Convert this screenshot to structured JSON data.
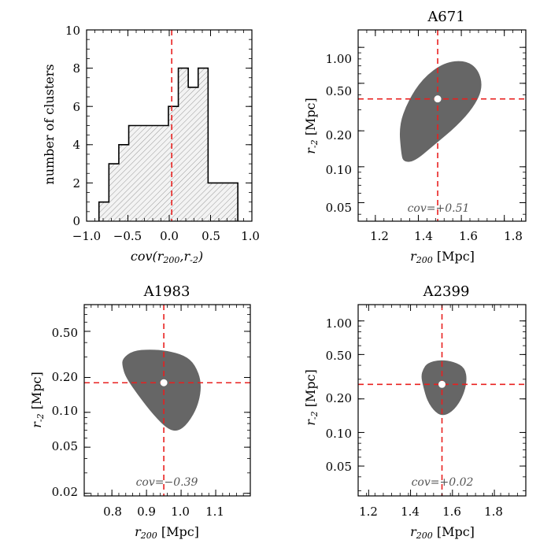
{
  "colors": {
    "ellipse": "#666666",
    "guide": "#e8201f",
    "frame": "#000000",
    "hatch_fill": "#f3f3f3",
    "hatch_line": "#9a9a9a"
  },
  "chart_data": [
    {
      "id": "hist",
      "type": "bar",
      "title": "",
      "xlabel": "cov(r200, r-2)",
      "xlabel_main": "cov(r",
      "xlabel_sub1": "200",
      "xlabel_mid": ",r",
      "xlabel_sub2": "-2",
      "xlabel_end": ")",
      "ylabel": "number of clusters",
      "xlim": [
        -1.0,
        1.0
      ],
      "ylim": [
        0,
        10
      ],
      "xticks": [
        -1.0,
        -0.5,
        0.0,
        0.5,
        1.0
      ],
      "xtick_labels": [
        "−1.0",
        "−0.5",
        "0.0",
        "0.5",
        "1.0"
      ],
      "yticks": [
        0,
        2,
        4,
        6,
        8,
        10
      ],
      "ytick_labels": [
        "0",
        "2",
        "4",
        "6",
        "8",
        "10"
      ],
      "bin_edges": [
        -0.85,
        -0.73,
        -0.61,
        -0.49,
        -0.37,
        -0.25,
        -0.13,
        -0.01,
        0.11,
        0.23,
        0.35,
        0.47,
        0.59,
        0.71,
        0.83
      ],
      "counts": [
        1,
        3,
        4,
        5,
        5,
        5,
        5,
        6,
        8,
        7,
        8,
        2,
        2,
        2
      ],
      "vline": 0.03
    },
    {
      "id": "a671",
      "type": "scatter",
      "title": "A671",
      "xlabel": "r200 [Mpc]",
      "xlabel_sym": "r",
      "xlabel_sub": "200",
      "xlabel_unit": " [Mpc]",
      "ylabel_sym": "r",
      "ylabel_sub": "-2",
      "ylabel_unit": " [Mpc]",
      "yscale": "log",
      "xlim": [
        1.12,
        1.9
      ],
      "ylim": [
        0.035,
        1.4
      ],
      "xticks": [
        1.2,
        1.4,
        1.6,
        1.8
      ],
      "xtick_labels": [
        "1.2",
        "1.4",
        "1.6",
        "1.8"
      ],
      "yticks": [
        0.05,
        0.1,
        0.2,
        0.5,
        1.0
      ],
      "ytick_labels": [
        "0.05",
        "0.10",
        "0.20",
        "0.50",
        "1.00"
      ],
      "point": {
        "x": 1.49,
        "y": 0.37
      },
      "cov_label": "cov=+0.51",
      "region": [
        [
          1.32,
          0.13
        ],
        [
          1.31,
          0.22
        ],
        [
          1.35,
          0.35
        ],
        [
          1.42,
          0.55
        ],
        [
          1.52,
          0.75
        ],
        [
          1.62,
          0.78
        ],
        [
          1.68,
          0.65
        ],
        [
          1.7,
          0.46
        ],
        [
          1.66,
          0.32
        ],
        [
          1.58,
          0.22
        ],
        [
          1.47,
          0.15
        ],
        [
          1.38,
          0.11
        ],
        [
          1.33,
          0.11
        ]
      ]
    },
    {
      "id": "a1983",
      "type": "scatter",
      "title": "A1983",
      "xlabel": "r200 [Mpc]",
      "xlabel_sym": "r",
      "xlabel_sub": "200",
      "xlabel_unit": " [Mpc]",
      "ylabel_sym": "r",
      "ylabel_sub": "-2",
      "ylabel_unit": " [Mpc]",
      "yscale": "log",
      "xlim": [
        0.72,
        1.2
      ],
      "ylim": [
        0.019,
        0.85
      ],
      "xticks": [
        0.8,
        0.9,
        1.0,
        1.1
      ],
      "xtick_labels": [
        "0.8",
        "0.9",
        "1.0",
        "1.1"
      ],
      "yticks": [
        0.02,
        0.05,
        0.1,
        0.2,
        0.5
      ],
      "ytick_labels": [
        "0.02",
        "0.05",
        "0.10",
        "0.20",
        "0.50"
      ],
      "point": {
        "x": 0.95,
        "y": 0.18
      },
      "cov_label": "cov=−0.39",
      "region": [
        [
          0.83,
          0.29
        ],
        [
          0.86,
          0.34
        ],
        [
          0.91,
          0.35
        ],
        [
          0.96,
          0.34
        ],
        [
          1.01,
          0.31
        ],
        [
          1.04,
          0.26
        ],
        [
          1.06,
          0.18
        ],
        [
          1.05,
          0.115
        ],
        [
          1.02,
          0.08
        ],
        [
          0.99,
          0.068
        ],
        [
          0.96,
          0.072
        ],
        [
          0.92,
          0.095
        ],
        [
          0.88,
          0.135
        ],
        [
          0.84,
          0.2
        ],
        [
          0.83,
          0.25
        ]
      ]
    },
    {
      "id": "a2399",
      "type": "scatter",
      "title": "A2399",
      "xlabel": "r200 [Mpc]",
      "xlabel_sym": "r",
      "xlabel_sub": "200",
      "xlabel_unit": " [Mpc]",
      "ylabel_sym": "r",
      "ylabel_sub": "-2",
      "ylabel_unit": " [Mpc]",
      "yscale": "log",
      "xlim": [
        1.15,
        1.95
      ],
      "ylim": [
        0.027,
        1.4
      ],
      "xticks": [
        1.2,
        1.4,
        1.6,
        1.8
      ],
      "xtick_labels": [
        "1.2",
        "1.4",
        "1.6",
        "1.8"
      ],
      "yticks": [
        0.05,
        0.1,
        0.2,
        0.5,
        1.0
      ],
      "ytick_labels": [
        "0.05",
        "0.10",
        "0.20",
        "0.50",
        "1.00"
      ],
      "point": {
        "x": 1.55,
        "y": 0.27
      },
      "cov_label": "cov=+0.02",
      "region": [
        [
          1.46,
          0.37
        ],
        [
          1.48,
          0.42
        ],
        [
          1.54,
          0.45
        ],
        [
          1.61,
          0.43
        ],
        [
          1.66,
          0.38
        ],
        [
          1.67,
          0.29
        ],
        [
          1.65,
          0.21
        ],
        [
          1.61,
          0.16
        ],
        [
          1.56,
          0.14
        ],
        [
          1.52,
          0.15
        ],
        [
          1.48,
          0.19
        ],
        [
          1.46,
          0.26
        ],
        [
          1.45,
          0.32
        ]
      ]
    }
  ]
}
